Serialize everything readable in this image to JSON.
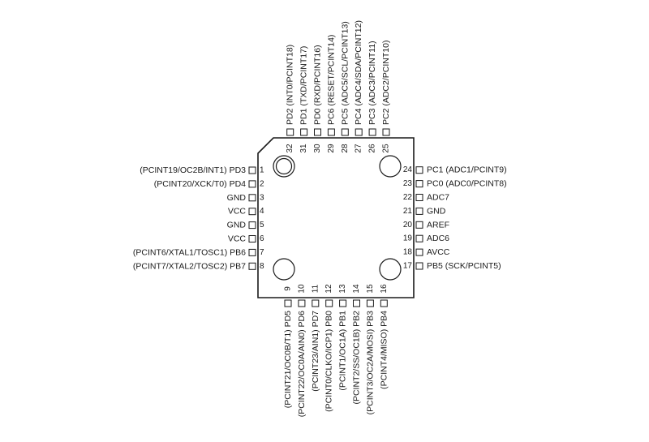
{
  "chip": {
    "pins": [
      {
        "n": "1",
        "label": "(PCINT19/OC2B/INT1) PD3"
      },
      {
        "n": "2",
        "label": "(PCINT20/XCK/T0) PD4"
      },
      {
        "n": "3",
        "label": "GND"
      },
      {
        "n": "4",
        "label": "VCC"
      },
      {
        "n": "5",
        "label": "GND"
      },
      {
        "n": "6",
        "label": "VCC"
      },
      {
        "n": "7",
        "label": "(PCINT6/XTAL1/TOSC1) PB6"
      },
      {
        "n": "8",
        "label": "(PCINT7/XTAL2/TOSC2) PB7"
      },
      {
        "n": "9",
        "label": "(PCINT21/OC0B/T1) PD5"
      },
      {
        "n": "10",
        "label": "(PCINT22/OC0A/AIN0) PD6"
      },
      {
        "n": "11",
        "label": "(PCINT23/AIN1) PD7"
      },
      {
        "n": "12",
        "label": "(PCINT0/CLKO/ICP1) PB0"
      },
      {
        "n": "13",
        "label": "(PCINT1/OC1A) PB1"
      },
      {
        "n": "14",
        "label": "(PCINT2/SS/OC1B) PB2"
      },
      {
        "n": "15",
        "label": "(PCINT3/OC2A/MOSI) PB3"
      },
      {
        "n": "16",
        "label": "(PCINT4/MISO) PB4"
      },
      {
        "n": "17",
        "label": "PB5 (SCK/PCINT5)"
      },
      {
        "n": "18",
        "label": "AVCC"
      },
      {
        "n": "19",
        "label": "ADC6"
      },
      {
        "n": "20",
        "label": "AREF"
      },
      {
        "n": "21",
        "label": "GND"
      },
      {
        "n": "22",
        "label": "ADC7"
      },
      {
        "n": "23",
        "label": "PC0 (ADC0/PCINT8)"
      },
      {
        "n": "24",
        "label": "PC1 (ADC1/PCINT9)"
      },
      {
        "n": "25",
        "label": "PC2 (ADC2/PCINT10)"
      },
      {
        "n": "26",
        "label": "PC3 (ADC3/PCINT11)"
      },
      {
        "n": "27",
        "label": "PC4 (ADC4/SDA/PCINT12)"
      },
      {
        "n": "28",
        "label": "PC5 (ADC5/SCL/PCINT13)"
      },
      {
        "n": "29",
        "label": "PC6 (RESET/PCINT14)"
      },
      {
        "n": "30",
        "label": "PD0 (RXD/PCINT16)"
      },
      {
        "n": "31",
        "label": "PD1 (TXD/PCINT17)"
      },
      {
        "n": "32",
        "label": "PD2 (INT0/PCINT18)"
      }
    ]
  }
}
